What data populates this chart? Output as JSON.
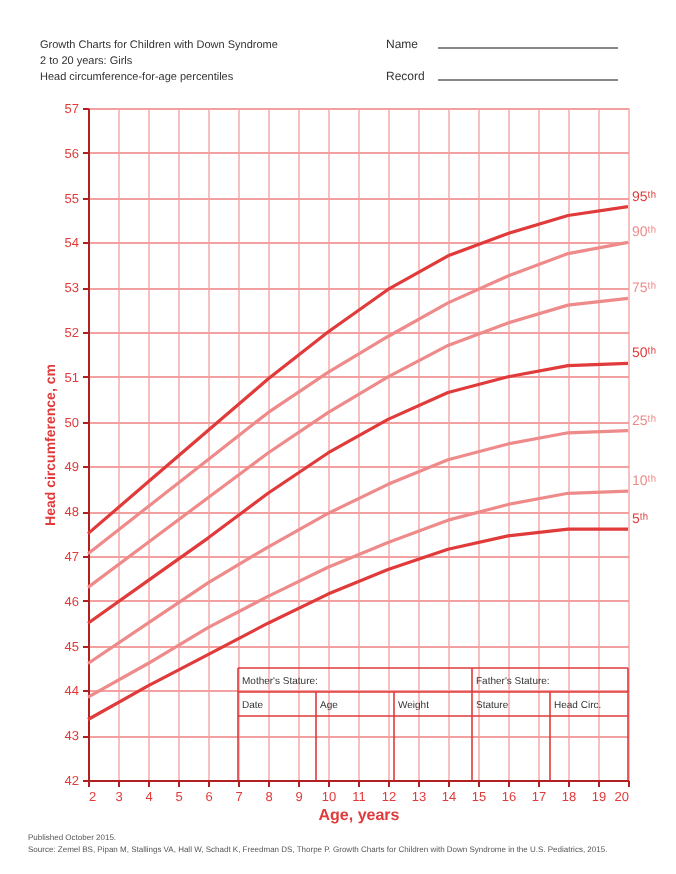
{
  "chart_data": {
    "type": "line",
    "title": "Growth Charts for Children with Down Syndrome",
    "subtitle": "2 to 20 years: Girls\nHead circumference-for-age percentiles",
    "xlabel": "Age, years",
    "ylabel": "Head circumference, cm",
    "x": [
      2,
      4,
      6,
      8,
      10,
      12,
      14,
      16,
      18,
      20
    ],
    "series": [
      {
        "name": "95ᵗʰ",
        "color": "#e03a3a",
        "values": [
          47.5,
          48.65,
          49.8,
          50.95,
          52.0,
          52.95,
          53.7,
          54.2,
          54.6,
          54.8
        ]
      },
      {
        "name": "90ᵗʰ",
        "color": "#ef8a8a",
        "values": [
          47.05,
          48.1,
          49.15,
          50.2,
          51.1,
          51.9,
          52.65,
          53.25,
          53.75,
          54.0
        ]
      },
      {
        "name": "75ᵗʰ",
        "color": "#ef8a8a",
        "values": [
          46.3,
          47.3,
          48.3,
          49.3,
          50.2,
          51.0,
          51.7,
          52.2,
          52.6,
          52.75
        ]
      },
      {
        "name": "50ᵗʰ",
        "color": "#e03a3a",
        "values": [
          45.5,
          46.45,
          47.4,
          48.4,
          49.3,
          50.05,
          50.65,
          51.0,
          51.25,
          51.3
        ]
      },
      {
        "name": "25ᵗʰ",
        "color": "#ef8a8a",
        "values": [
          44.6,
          45.5,
          46.4,
          47.2,
          47.95,
          48.6,
          49.15,
          49.5,
          49.75,
          49.8
        ]
      },
      {
        "name": "10ᵗʰ",
        "color": "#ef8a8a",
        "values": [
          43.85,
          44.6,
          45.4,
          46.1,
          46.75,
          47.3,
          47.8,
          48.15,
          48.4,
          48.45
        ]
      },
      {
        "name": "5ᵗʰ",
        "color": "#e03a3a",
        "values": [
          43.35,
          44.1,
          44.8,
          45.5,
          46.15,
          46.7,
          47.15,
          47.45,
          47.6,
          47.6
        ]
      }
    ],
    "xlim": [
      2,
      20
    ],
    "xticks": [
      2,
      3,
      4,
      5,
      6,
      7,
      8,
      9,
      10,
      11,
      12,
      13,
      14,
      15,
      16,
      17,
      18,
      19,
      20
    ],
    "ylim": [
      42,
      57
    ],
    "yticks": [
      42,
      43,
      44,
      45,
      46,
      47,
      48,
      49,
      50,
      51,
      52,
      53,
      54,
      55,
      56,
      57
    ],
    "grid": true,
    "legend": false,
    "marker": "none",
    "line_style": "solid",
    "annotations": [
      "Name",
      "Record",
      "Mother's Stature:",
      "Date",
      "Age",
      "Weight",
      "Father's Stature:",
      "Stature",
      "Head Circ.",
      "Published October 2015.",
      "Source: Zemel BS, Pipan M, Stallings VA, Hall W, Schadt K, Freedman DS, Thorpe P. Growth Charts for Children with Down Syndrome in the U.S. Pediatrics, 2015."
    ]
  }
}
